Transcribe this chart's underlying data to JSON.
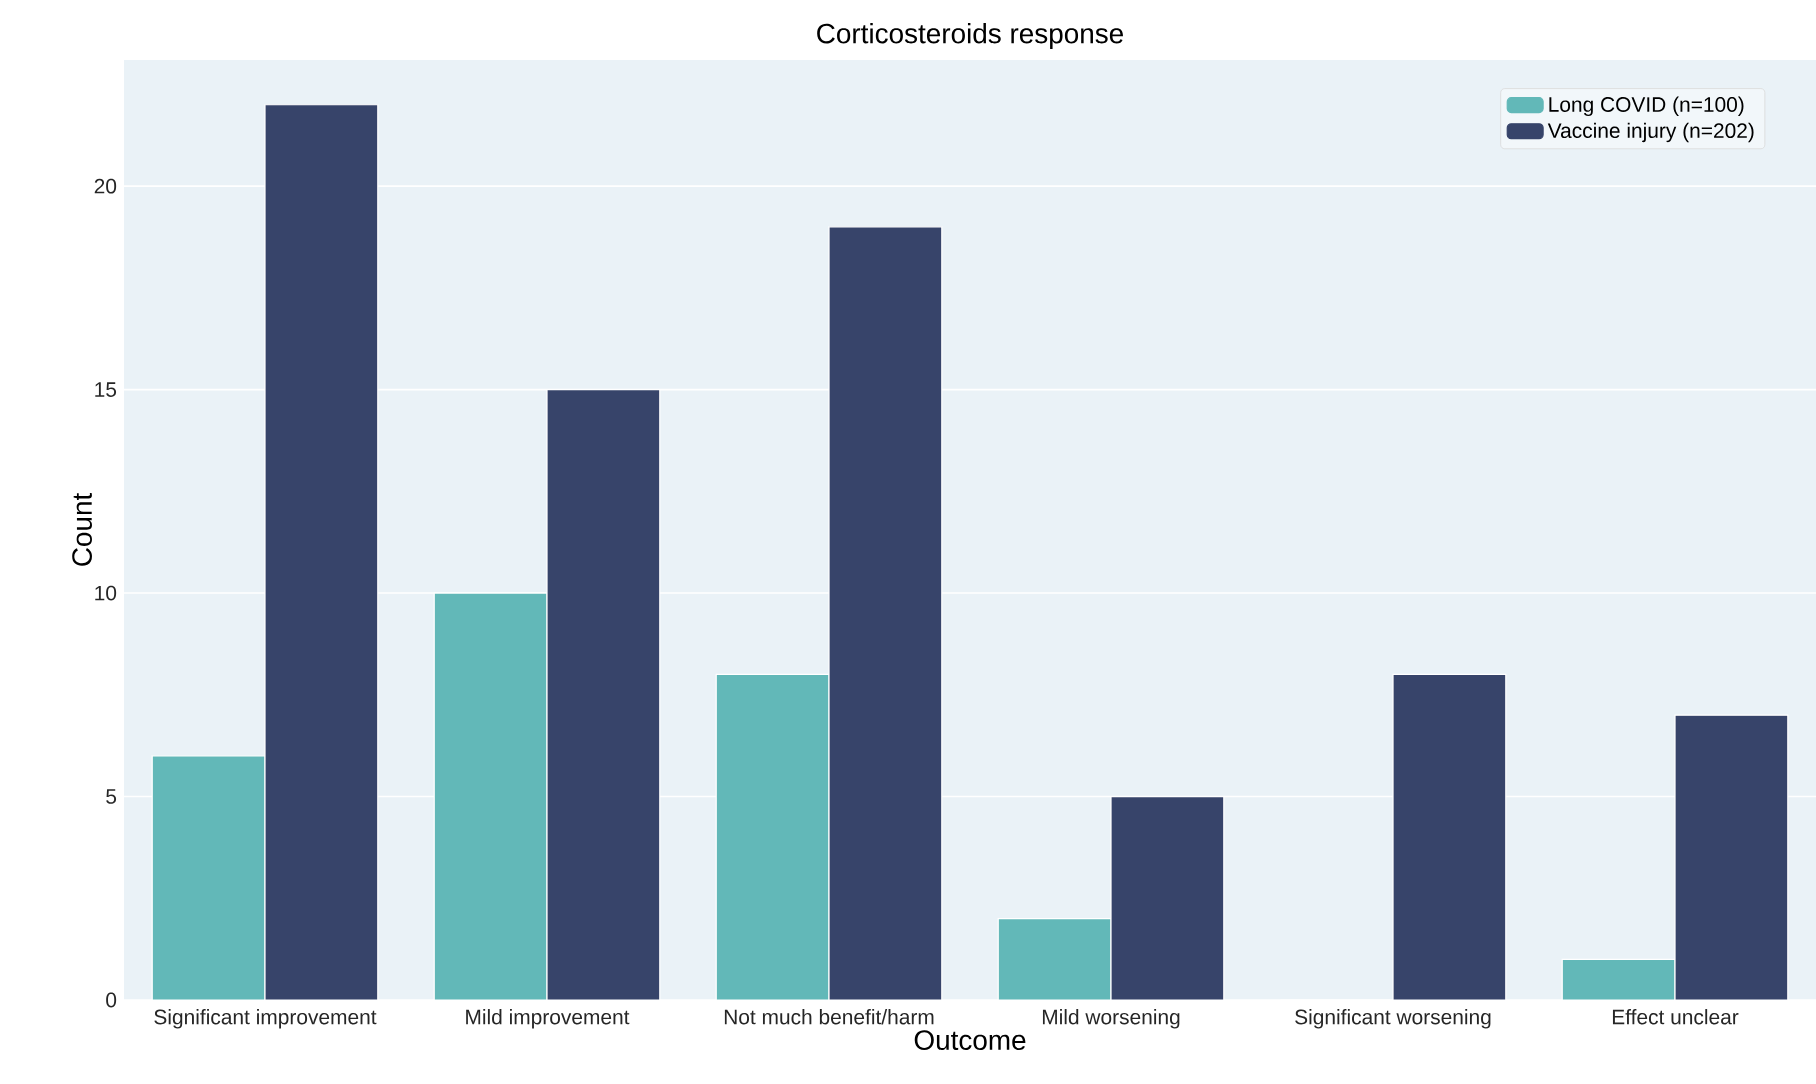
{
  "chart_data": {
    "type": "bar",
    "title": "Corticosteroids response",
    "xlabel": "Outcome",
    "ylabel": "Count",
    "categories": [
      "Significant improvement",
      "Mild improvement",
      "Not much benefit/harm",
      "Mild worsening",
      "Significant worsening",
      "Effect unclear"
    ],
    "series": [
      {
        "name": "Long COVID (n=100)",
        "color": "#62b8b8",
        "values": [
          6,
          10,
          8,
          2,
          0,
          1
        ]
      },
      {
        "name": "Vaccine injury (n=202)",
        "color": "#37446a",
        "values": [
          22,
          15,
          19,
          5,
          8,
          7
        ]
      }
    ],
    "ylim": [
      0,
      23.1
    ],
    "yticks": [
      0,
      5,
      10,
      15,
      20
    ],
    "grid": "y",
    "legend": "top right"
  }
}
